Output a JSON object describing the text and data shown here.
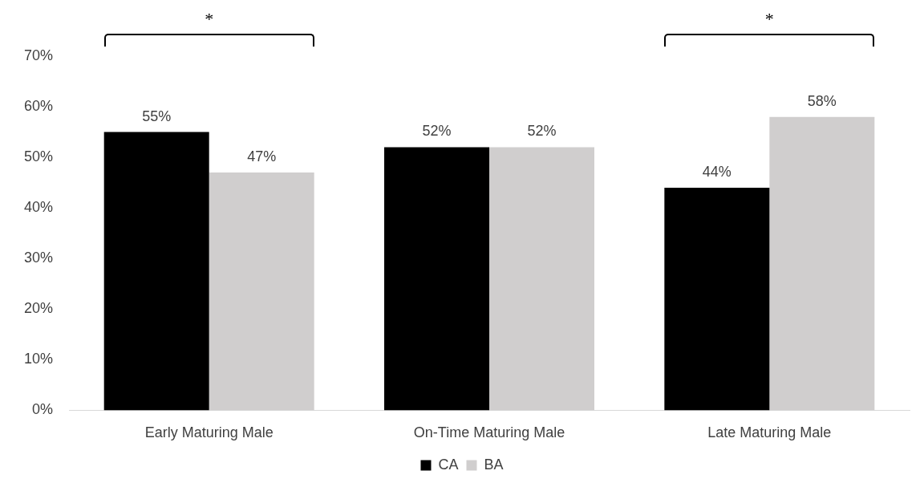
{
  "chart_data": {
    "type": "bar",
    "categories": [
      "Early Maturing Male",
      "On-Time Maturing Male",
      "Late Maturing Male"
    ],
    "series": [
      {
        "name": "CA",
        "color": "#000000",
        "values": [
          55,
          52,
          44
        ],
        "value_labels": [
          "55%",
          "52%",
          "44%"
        ]
      },
      {
        "name": "BA",
        "color": "#d0cece",
        "values": [
          47,
          52,
          58
        ],
        "value_labels": [
          "47%",
          "52%",
          "58%"
        ]
      }
    ],
    "ylim": [
      0,
      70
    ],
    "yticks": [
      {
        "value": 0,
        "label": "0%"
      },
      {
        "value": 10,
        "label": "10%"
      },
      {
        "value": 20,
        "label": "20%"
      },
      {
        "value": 30,
        "label": "30%"
      },
      {
        "value": 40,
        "label": "40%"
      },
      {
        "value": 50,
        "label": "50%"
      },
      {
        "value": 60,
        "label": "60%"
      },
      {
        "value": 70,
        "label": "70%"
      }
    ],
    "annotations": [
      "*",
      "*"
    ],
    "grid": false,
    "legend": "bottom"
  }
}
